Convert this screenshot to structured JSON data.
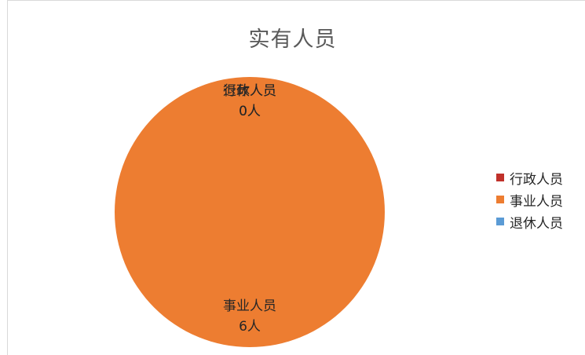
{
  "chart_data": {
    "type": "pie",
    "title": "实有人员",
    "unit": "人",
    "categories": [
      "行政人员",
      "事业人员",
      "退休人员"
    ],
    "values": [
      0,
      6,
      0
    ],
    "colors": [
      "#c0312a",
      "#ed7d31",
      "#5b9bd5"
    ],
    "data_labels": [
      {
        "category": "行政人员",
        "value_text": "0人"
      },
      {
        "category": "事业人员",
        "value_text": "6人"
      },
      {
        "category": "退休人员",
        "value_text": "0人"
      }
    ],
    "legend_position": "right"
  }
}
